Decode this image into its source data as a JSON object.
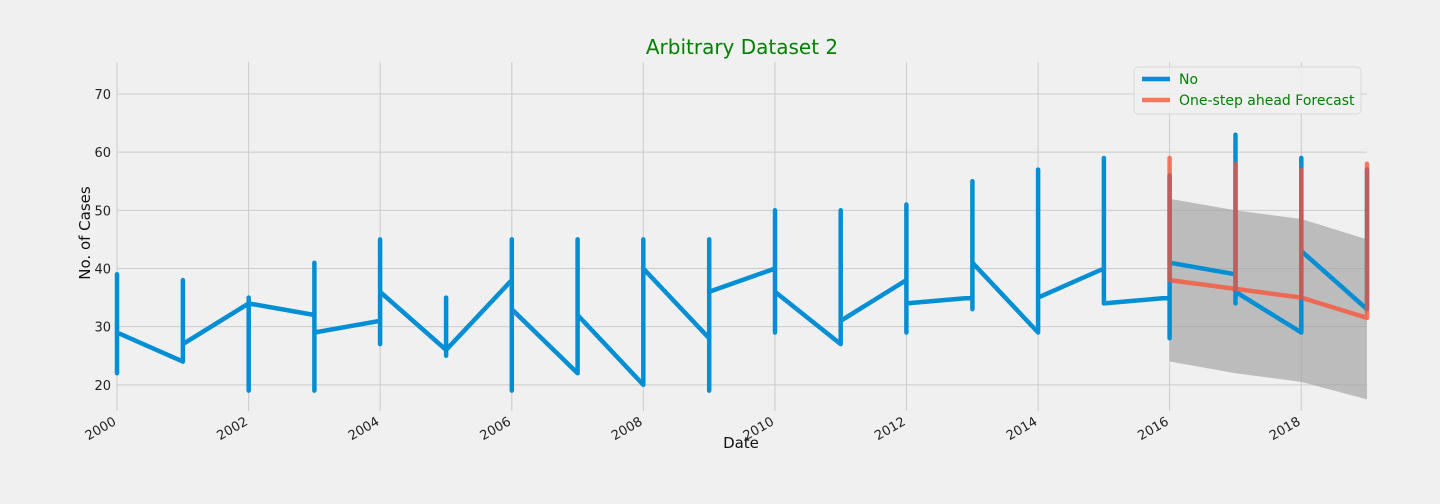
{
  "chart_data": {
    "type": "line",
    "title": "Arbitrary Dataset 2",
    "xlabel": "Date",
    "ylabel": "No. of Cases",
    "xlim": [
      "2000-01-01",
      "2019-01-01"
    ],
    "ylim": [
      15.5,
      75.5
    ],
    "x_ticks": [
      "2000",
      "2002",
      "2004",
      "2006",
      "2008",
      "2010",
      "2012",
      "2014",
      "2016",
      "2018"
    ],
    "y_ticks": [
      20,
      30,
      40,
      50,
      60,
      70
    ],
    "grid": true,
    "legend_position": "top-right",
    "colors": {
      "observed": "#008fd5",
      "forecast": "#fc4f30",
      "confidence": "#a0a0a0",
      "title": "#008000",
      "grid": "#cbcbcb"
    },
    "series": [
      {
        "name": "No",
        "x": [
          "2000-01-01",
          "2000-01-01",
          "2000-01-01",
          "2000-01-01",
          "2001-01-01",
          "2001-01-01",
          "2001-01-01",
          "2001-01-01",
          "2002-01-01",
          "2002-01-01",
          "2002-01-01",
          "2002-01-01",
          "2003-01-01",
          "2003-01-01",
          "2003-01-01",
          "2003-01-01",
          "2004-01-01",
          "2004-01-01",
          "2004-01-01",
          "2004-01-01",
          "2005-01-01",
          "2005-01-01",
          "2005-01-01",
          "2005-01-01",
          "2006-01-01",
          "2006-01-01",
          "2006-01-01",
          "2006-01-01",
          "2007-01-01",
          "2007-01-01",
          "2007-01-01",
          "2007-01-01",
          "2008-01-01",
          "2008-01-01",
          "2008-01-01",
          "2008-01-01",
          "2009-01-01",
          "2009-01-01",
          "2009-01-01",
          "2009-01-01",
          "2010-01-01",
          "2010-01-01",
          "2010-01-01",
          "2010-01-01",
          "2011-01-01",
          "2011-01-01",
          "2011-01-01",
          "2011-01-01",
          "2012-01-01",
          "2012-01-01",
          "2012-01-01",
          "2012-01-01",
          "2013-01-01",
          "2013-01-01",
          "2013-01-01",
          "2013-01-01",
          "2014-01-01",
          "2014-01-01",
          "2014-01-01",
          "2014-01-01",
          "2015-01-01",
          "2015-01-01",
          "2015-01-01",
          "2015-01-01",
          "2016-01-01",
          "2016-01-01",
          "2016-01-01",
          "2016-01-01",
          "2017-01-01",
          "2017-01-01",
          "2017-01-01",
          "2017-01-01",
          "2018-01-01",
          "2018-01-01",
          "2018-01-01",
          "2018-01-01",
          "2019-01-01",
          "2019-01-01",
          "2019-01-01"
        ],
        "values": [
          27,
          39,
          22,
          29,
          24,
          38,
          27,
          27,
          34,
          35,
          19,
          34,
          32,
          41,
          19,
          29,
          31,
          45,
          27,
          36,
          26,
          35,
          25,
          26,
          38,
          45,
          19,
          33,
          22,
          45,
          25,
          32,
          20,
          45,
          25,
          40,
          28,
          45,
          19,
          36,
          40,
          50,
          29,
          36,
          27,
          50,
          29,
          31,
          38,
          51,
          29,
          34,
          35,
          55,
          33,
          41,
          29,
          57,
          29,
          35,
          40,
          59,
          34,
          34,
          35,
          56,
          28,
          41,
          39,
          63,
          34,
          36,
          29,
          59,
          35,
          43,
          33,
          57,
          33
        ]
      },
      {
        "name": "One-step ahead Forecast",
        "x": [
          "2016-01-01",
          "2016-01-01",
          "2016-01-01",
          "2017-01-01",
          "2017-01-01",
          "2017-01-01",
          "2018-01-01",
          "2018-01-01",
          "2018-01-01",
          "2019-01-01",
          "2019-01-01",
          "2019-01-01"
        ],
        "values": [
          38,
          59,
          38,
          36.5,
          58,
          36.5,
          35,
          57,
          35,
          31.5,
          58,
          31.5
        ]
      }
    ],
    "confidence_interval": {
      "x": [
        "2016-01-01",
        "2017-01-01",
        "2018-01-01",
        "2019-01-01"
      ],
      "lower": [
        24,
        22,
        20.5,
        17.5
      ],
      "upper": [
        52,
        50,
        48.5,
        45
      ]
    }
  }
}
